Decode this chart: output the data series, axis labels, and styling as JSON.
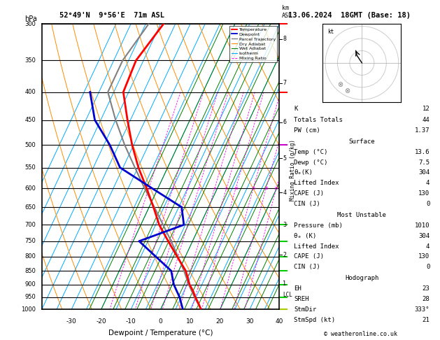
{
  "title_left": "52°49'N  9°56'E  71m ASL",
  "title_right": "13.06.2024  18GMT (Base: 18)",
  "xlabel": "Dewpoint / Temperature (°C)",
  "ylabel_left": "hPa",
  "ylabel_right": "km\nASL",
  "pressure_levels": [
    300,
    350,
    400,
    450,
    500,
    550,
    600,
    650,
    700,
    750,
    800,
    850,
    900,
    950,
    1000
  ],
  "temp_range": [
    -40,
    40
  ],
  "temp_ticks": [
    -30,
    -20,
    -10,
    0,
    10,
    20,
    30,
    40
  ],
  "colors": {
    "temperature": "#ff0000",
    "dewpoint": "#0000cd",
    "parcel": "#808080",
    "dry_adiabat": "#ff8c00",
    "wet_adiabat": "#008000",
    "isotherm": "#00aaff",
    "mixing_ratio": "#ff00ff",
    "background": "#ffffff"
  },
  "km_ticks": [
    1,
    2,
    3,
    4,
    5,
    6,
    7,
    8
  ],
  "km_pressures": [
    898,
    795,
    700,
    611,
    529,
    454,
    385,
    320
  ],
  "mixing_ratios": [
    1,
    2,
    3,
    4,
    6,
    8,
    10,
    15,
    20,
    25
  ],
  "temp_profile": {
    "pressure": [
      1000,
      975,
      950,
      925,
      900,
      850,
      800,
      750,
      700,
      650,
      600,
      550,
      500,
      450,
      400,
      350,
      300
    ],
    "temp": [
      13.6,
      11.8,
      9.8,
      8.0,
      5.8,
      2.4,
      -2.8,
      -8.2,
      -13.8,
      -18.5,
      -23.8,
      -29.8,
      -35.5,
      -41.0,
      -46.8,
      -47.5,
      -44.0
    ]
  },
  "dewp_profile": {
    "pressure": [
      1000,
      975,
      950,
      925,
      900,
      850,
      800,
      750,
      700,
      650,
      600,
      550,
      500,
      450,
      400
    ],
    "dewp": [
      7.5,
      6.0,
      4.5,
      2.5,
      0.5,
      -2.5,
      -10.0,
      -18.0,
      -5.5,
      -9.0,
      -22.0,
      -36.0,
      -43.0,
      -52.0,
      -58.0
    ]
  },
  "parcel_profile": {
    "pressure": [
      1000,
      950,
      900,
      850,
      800,
      750,
      700,
      650,
      600,
      550,
      500,
      450,
      400,
      350,
      300
    ],
    "temp": [
      13.6,
      9.5,
      5.5,
      1.8,
      -2.5,
      -7.2,
      -12.5,
      -18.2,
      -24.5,
      -31.0,
      -38.0,
      -45.0,
      -52.0,
      -52.0,
      -49.0
    ]
  },
  "lcl_pressure": 940,
  "info_panel": {
    "K": 12,
    "Totals Totals": 44,
    "PW (cm)": "1.37",
    "Surface_Temp": "13.6",
    "Surface_Dewp": "7.5",
    "Surface_thetae": 304,
    "Surface_LI": 4,
    "Surface_CAPE": 130,
    "Surface_CIN": 0,
    "MU_Pressure": 1010,
    "MU_thetae": 304,
    "MU_LI": 4,
    "MU_CAPE": 130,
    "MU_CIN": 0,
    "Hodo_EH": 23,
    "Hodo_SREH": 28,
    "Hodo_StmDir": "333°",
    "Hodo_StmSpd": 21
  },
  "footer": "© weatheronline.co.uk"
}
